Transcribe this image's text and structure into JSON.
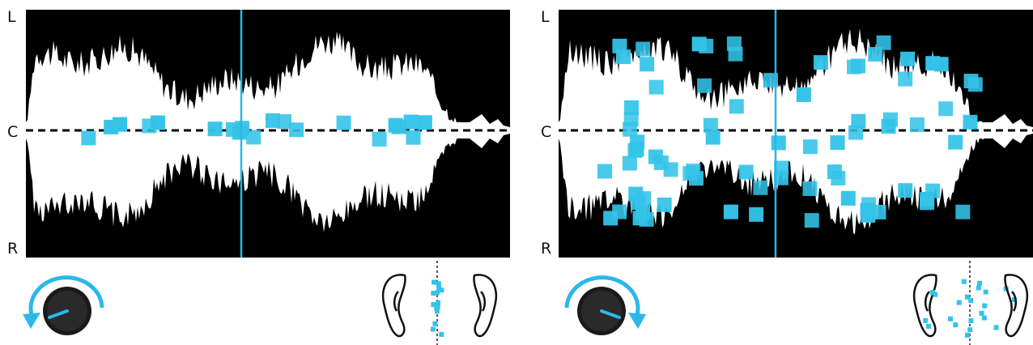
{
  "channel_labels": {
    "left": "L",
    "center": "C",
    "right": "R"
  },
  "panels": [
    {
      "id": "narrow",
      "stereo_spread": "narrow",
      "knob_rotation": "counterclockwise",
      "grain_count": 20
    },
    {
      "id": "wide",
      "stereo_spread": "wide",
      "knob_rotation": "clockwise",
      "grain_count": 80
    }
  ],
  "colors": {
    "waveform_bg": "#000000",
    "waveform_fg": "#ffffff",
    "grain": "#33c3e8",
    "playhead": "#29b6e6",
    "center_line": "#000000",
    "knob_arrow": "#2ab8ea",
    "knob_body": "#1a1a1a"
  },
  "icons": [
    "knob-icon",
    "rotation-arrow-icon",
    "left-ear-icon",
    "right-ear-icon"
  ]
}
